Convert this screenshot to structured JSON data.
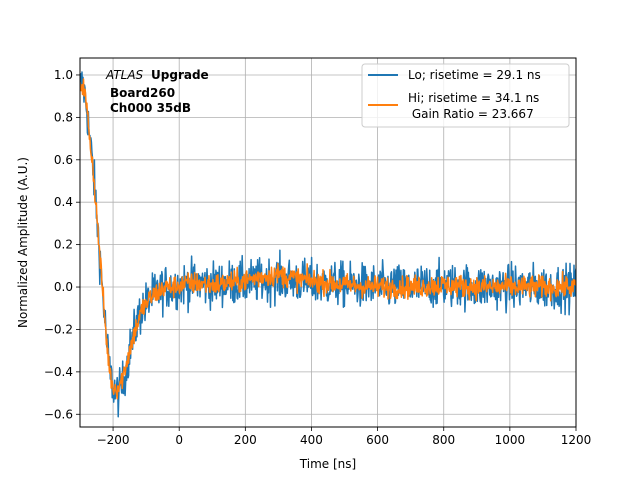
{
  "chart_data": {
    "type": "line",
    "xlabel": "Time [ns]",
    "ylabel": "Normalized Amplitude (A.U.)",
    "xlim": [
      -300,
      1200
    ],
    "ylim": [
      -0.66,
      1.08
    ],
    "xticks": [
      -200,
      0,
      200,
      400,
      600,
      800,
      1000,
      1200
    ],
    "yticks": [
      -0.6,
      -0.4,
      -0.2,
      0.0,
      0.2,
      0.4,
      0.6,
      0.8,
      1.0
    ],
    "xtick_labels": [
      "−200",
      "0",
      "200",
      "400",
      "600",
      "800",
      "1000",
      "1200"
    ],
    "ytick_labels": [
      "−0.6",
      "−0.4",
      "−0.2",
      "0.0",
      "0.2",
      "0.4",
      "0.6",
      "0.8",
      "1.0"
    ],
    "grid": true,
    "legend_position": "top-right",
    "annotation": {
      "italic": "ATLAS",
      "bold": "Upgrade",
      "line2": "Board260",
      "line3": "Ch000 35dB"
    },
    "series": [
      {
        "name": "Lo; risetime = 29.1 ns",
        "color": "#1f77b4",
        "x": [
          -290,
          -280,
          -270,
          -260,
          -250,
          -240,
          -230,
          -220,
          -210,
          -200,
          -190,
          -180,
          -170,
          -160,
          -150,
          -140,
          -130,
          -120,
          -110,
          -100,
          -90,
          -80,
          -70,
          -60,
          -50,
          -40,
          -20,
          0,
          50,
          100,
          150,
          200,
          250,
          300,
          350,
          400,
          500,
          600,
          700,
          800,
          900,
          1000,
          1100,
          1200
        ],
        "y": [
          0.95,
          0.85,
          0.7,
          0.55,
          0.35,
          0.15,
          -0.05,
          -0.25,
          -0.4,
          -0.47,
          -0.5,
          -0.5,
          -0.45,
          -0.38,
          -0.3,
          -0.24,
          -0.18,
          -0.13,
          -0.1,
          -0.08,
          -0.06,
          -0.04,
          -0.03,
          -0.02,
          -0.01,
          0.0,
          0.0,
          0.01,
          0.02,
          0.01,
          0.02,
          0.02,
          0.03,
          0.04,
          0.03,
          0.02,
          0.01,
          0.0,
          0.0,
          0.01,
          0.0,
          0.0,
          0.0,
          0.0
        ],
        "noise": 0.1
      },
      {
        "name": "Hi; risetime = 34.1 ns\n Gain Ratio = 23.667",
        "color": "#ff7f0e",
        "x": [
          -290,
          -280,
          -270,
          -260,
          -250,
          -240,
          -230,
          -220,
          -210,
          -200,
          -190,
          -180,
          -170,
          -160,
          -150,
          -140,
          -130,
          -120,
          -110,
          -100,
          -90,
          -80,
          -70,
          -60,
          -50,
          -40,
          -20,
          0,
          50,
          100,
          150,
          200,
          250,
          300,
          350,
          400,
          500,
          600,
          700,
          800,
          900,
          1000,
          1100,
          1200
        ],
        "y": [
          0.95,
          0.85,
          0.7,
          0.55,
          0.35,
          0.15,
          -0.05,
          -0.25,
          -0.4,
          -0.47,
          -0.48,
          -0.46,
          -0.42,
          -0.36,
          -0.3,
          -0.24,
          -0.19,
          -0.14,
          -0.1,
          -0.08,
          -0.06,
          -0.04,
          -0.03,
          -0.02,
          -0.01,
          0.0,
          0.0,
          0.01,
          0.02,
          0.01,
          0.02,
          0.03,
          0.05,
          0.06,
          0.04,
          0.03,
          0.01,
          0.0,
          0.0,
          0.01,
          0.0,
          0.0,
          0.0,
          0.0
        ],
        "noise": 0.05
      }
    ]
  }
}
